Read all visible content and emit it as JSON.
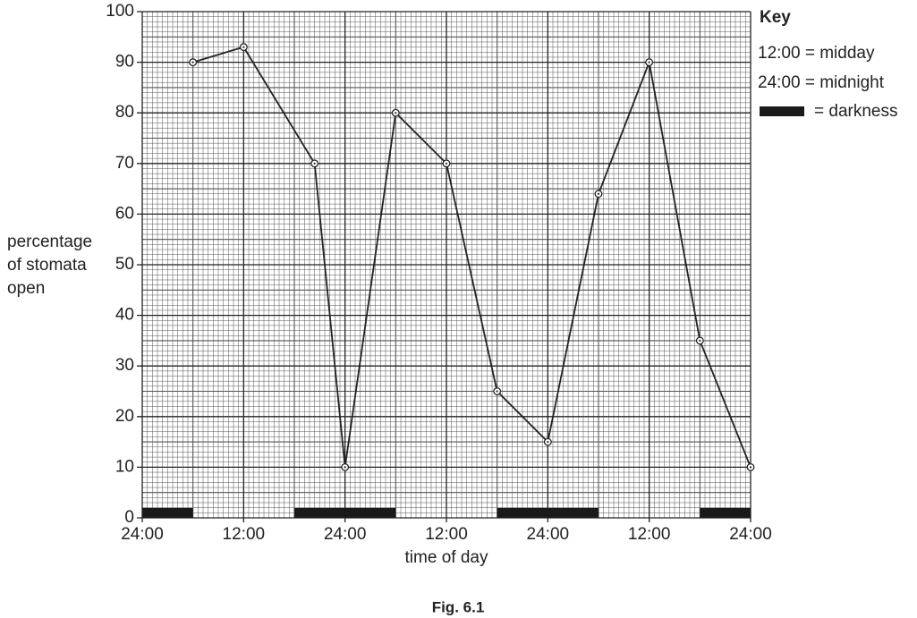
{
  "chart_data": {
    "type": "line",
    "y_label": [
      "percentage",
      "of stomata",
      "open"
    ],
    "x_label": "time of day",
    "caption": "Fig. 6.1",
    "key": {
      "title": "Key",
      "items": [
        "12:00 = midday",
        "24:00 = midnight",
        "= darkness"
      ]
    },
    "x": [
      6,
      12,
      20.4,
      24,
      30,
      36,
      42,
      48,
      54,
      60,
      66,
      72
    ],
    "values": [
      90,
      93,
      70,
      10,
      80,
      70,
      25,
      15,
      64,
      90,
      35,
      10
    ],
    "color": "#222222",
    "darkness": [
      [
        0,
        6
      ],
      [
        18,
        30
      ],
      [
        42,
        54
      ],
      [
        66,
        72
      ]
    ],
    "darkness_color": "#1a1a1a",
    "xlim": [
      0,
      72
    ],
    "xticks": [
      {
        "value": 0,
        "label": "24:00"
      },
      {
        "value": 12,
        "label": "12:00"
      },
      {
        "value": 24,
        "label": "24:00"
      },
      {
        "value": 36,
        "label": "12:00"
      },
      {
        "value": 48,
        "label": "24:00"
      },
      {
        "value": 60,
        "label": "12:00"
      },
      {
        "value": 72,
        "label": "24:00"
      }
    ],
    "ylim": [
      0,
      100
    ],
    "yticks": [
      0,
      10,
      20,
      30,
      40,
      50,
      60,
      70,
      80,
      90,
      100
    ],
    "grid": true
  }
}
